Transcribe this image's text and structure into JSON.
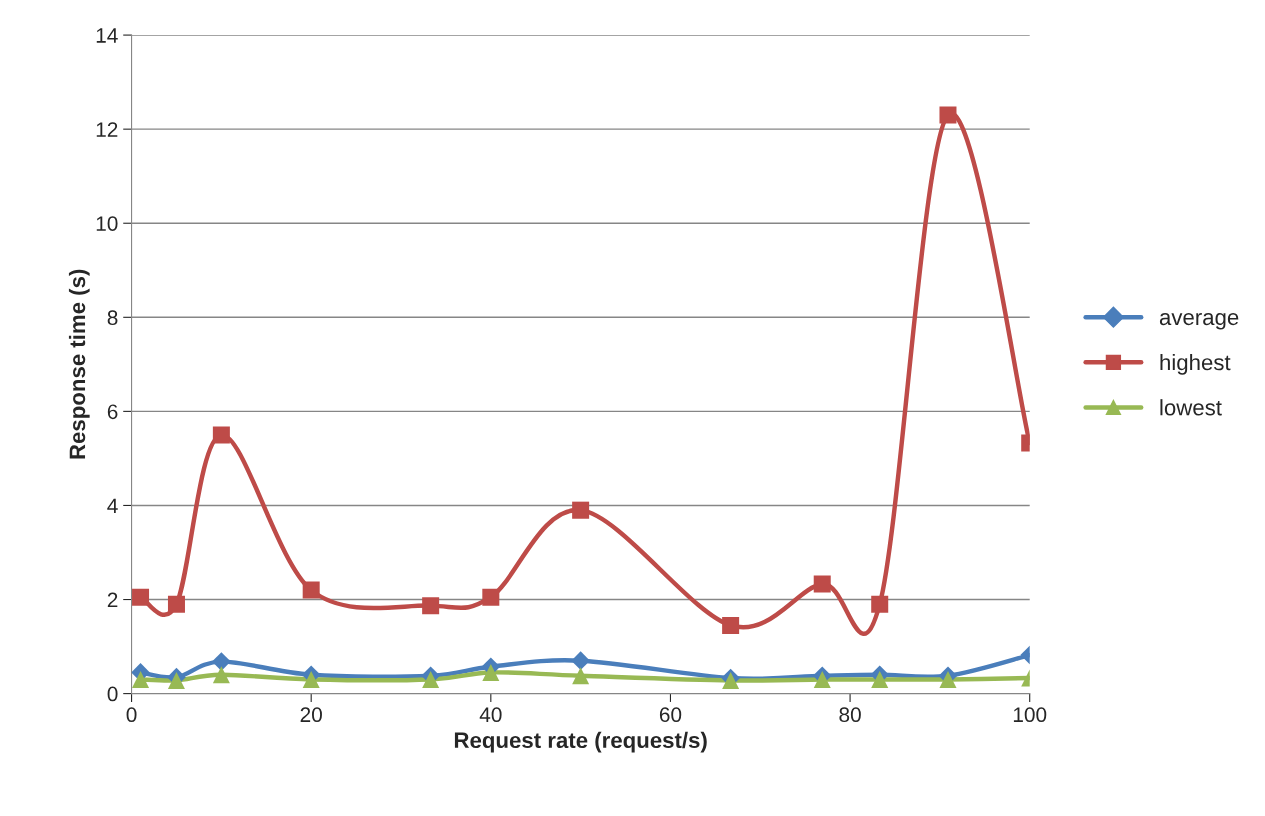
{
  "chart_data": {
    "type": "line",
    "xlabel": "Request rate (request/s)",
    "ylabel": "Response time (s)",
    "x": [
      1,
      5,
      10,
      20,
      33.3,
      40,
      50,
      66.7,
      76.9,
      83.3,
      90.9,
      100
    ],
    "series": [
      {
        "name": "average",
        "color": "#4a7ebb",
        "marker": "diamond",
        "values": [
          0.45,
          0.35,
          0.68,
          0.4,
          0.38,
          0.57,
          0.7,
          0.33,
          0.38,
          0.4,
          0.38,
          0.82
        ]
      },
      {
        "name": "highest",
        "color": "#be4b48",
        "marker": "square",
        "values": [
          2.05,
          1.9,
          5.5,
          2.2,
          1.87,
          2.05,
          3.9,
          1.45,
          2.33,
          1.9,
          12.3,
          5.33
        ]
      },
      {
        "name": "lowest",
        "color": "#98b954",
        "marker": "triangle",
        "values": [
          0.3,
          0.28,
          0.4,
          0.3,
          0.3,
          0.45,
          0.38,
          0.28,
          0.3,
          0.3,
          0.3,
          0.33
        ]
      }
    ],
    "xlim": [
      0,
      100
    ],
    "xticks": [
      0,
      20,
      40,
      60,
      80,
      100
    ],
    "ylim": [
      0,
      14
    ],
    "yticks": [
      0,
      2,
      4,
      6,
      8,
      10,
      12,
      14
    ],
    "grid": "y",
    "legend": "right",
    "line_style": "solid"
  }
}
